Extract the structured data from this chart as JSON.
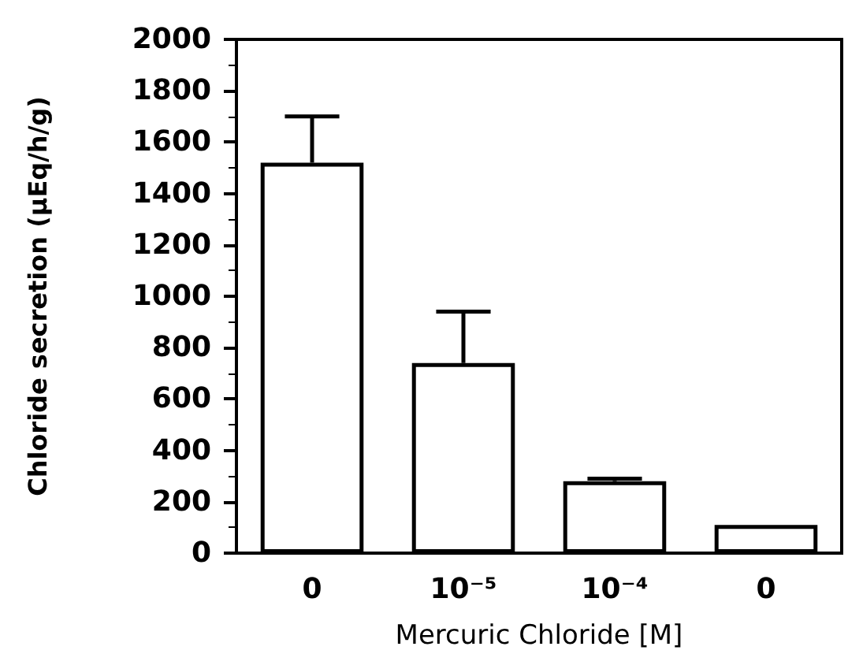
{
  "chart_data": {
    "type": "bar",
    "xlabel": "Mercuric Chloride [M]",
    "ylabel": "Chloride secretion (µEq/h/g)",
    "categories": [
      "0",
      "10⁻⁵",
      "10⁻⁴",
      "0"
    ],
    "values": [
      1520,
      740,
      280,
      110
    ],
    "errors": [
      [
        1520,
        1700
      ],
      [
        740,
        940
      ],
      [
        280,
        290
      ],
      null
    ],
    "color": "#ffffff",
    "ylim": [
      0,
      2000
    ],
    "yticks": [
      0,
      200,
      400,
      600,
      800,
      1000,
      1200,
      1400,
      1600,
      1800,
      2000
    ],
    "grid": false
  }
}
